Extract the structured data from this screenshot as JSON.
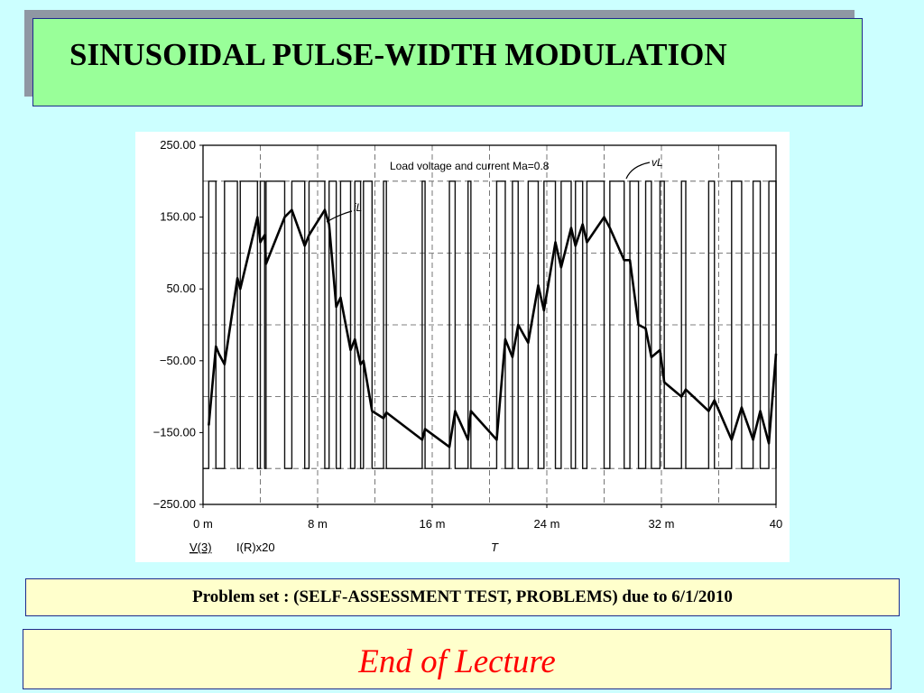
{
  "slide": {
    "title": "SINUSOIDAL PULSE-WIDTH MODULATION",
    "problem_set": "Problem set : (SELF-ASSESSMENT TEST, PROBLEMS) due to 6/1/2010",
    "end_text": "End of Lecture"
  },
  "colors": {
    "background": "#ccffff",
    "title_box": "#99ff99",
    "note_box": "#ffffcc",
    "end_text": "#ff0000",
    "border": "#1d2b8c"
  },
  "chart_data": {
    "type": "line",
    "title": "Load voltage and current Ma=0.8",
    "xlabel": "T",
    "x_ticks": [
      0,
      8,
      16,
      24,
      32,
      40
    ],
    "x_tick_labels": [
      "0 m",
      "8 m",
      "16 m",
      "24 m",
      "32 m",
      "40"
    ],
    "xlim": [
      0,
      40
    ],
    "y_ticks": [
      250,
      150,
      50,
      -50,
      -150,
      -250
    ],
    "y_tick_labels": [
      "250.00",
      "150.00",
      "50.00",
      "−50.00",
      "−150.00",
      "−250.00"
    ],
    "ylim": [
      -250,
      250
    ],
    "grid": true,
    "legend": [
      "V(3)",
      "I(R)x20"
    ],
    "annotations": {
      "voltage": "vL",
      "current": "iL"
    },
    "series": [
      {
        "name": "vL",
        "kind": "pwm",
        "levels": [
          -200,
          200
        ],
        "pulses_ms": [
          [
            0.4,
            0.9
          ],
          [
            1.5,
            2.4
          ],
          [
            2.6,
            3.8
          ],
          [
            4.0,
            4.3
          ],
          [
            4.4,
            5.7
          ],
          [
            6.2,
            7.1
          ],
          [
            7.4,
            8.5
          ],
          [
            8.8,
            9.3
          ],
          [
            9.6,
            10.3
          ],
          [
            10.6,
            11.0
          ],
          [
            11.2,
            11.8
          ],
          [
            12.6,
            12.8
          ],
          [
            15.3,
            15.5
          ],
          [
            17.2,
            17.6
          ],
          [
            18.5,
            18.7
          ],
          [
            20.5,
            21.1
          ],
          [
            21.6,
            22.0
          ],
          [
            22.7,
            23.4
          ],
          [
            23.8,
            24.6
          ],
          [
            25.0,
            25.7
          ],
          [
            26.0,
            26.5
          ],
          [
            26.8,
            28.0
          ],
          [
            28.4,
            29.4
          ],
          [
            29.8,
            30.4
          ],
          [
            30.9,
            31.3
          ],
          [
            31.9,
            32.2
          ],
          [
            33.4,
            33.7
          ],
          [
            35.3,
            35.7
          ],
          [
            36.9,
            37.6
          ],
          [
            38.4,
            38.9
          ],
          [
            39.5,
            40.0
          ]
        ]
      },
      {
        "name": "iL",
        "x": [
          0.4,
          0.9,
          1.1,
          1.5,
          2.4,
          2.6,
          3.8,
          4.0,
          4.3,
          4.4,
          5.7,
          6.2,
          7.1,
          7.4,
          8.5,
          8.8,
          9.3,
          9.6,
          10.3,
          10.6,
          11.0,
          11.2,
          11.8,
          12.6,
          12.8,
          15.3,
          15.5,
          17.2,
          17.6,
          18.5,
          18.7,
          20.5,
          21.1,
          21.6,
          22.0,
          22.7,
          23.4,
          23.8,
          24.6,
          25.0,
          25.7,
          26.0,
          26.5,
          26.8,
          28.0,
          28.4,
          29.4,
          29.8,
          30.4,
          30.9,
          31.3,
          31.9,
          32.2,
          33.4,
          33.7,
          35.3,
          35.7,
          36.9,
          37.6,
          38.4,
          38.9,
          39.5,
          40.0
        ],
        "values": [
          -140,
          -30,
          -40,
          -55,
          65,
          50,
          150,
          115,
          125,
          85,
          150,
          160,
          110,
          125,
          160,
          140,
          25,
          38,
          -35,
          -20,
          -55,
          -50,
          -120,
          -130,
          -122,
          -160,
          -145,
          -170,
          -120,
          -160,
          -120,
          -160,
          -20,
          -45,
          0,
          -25,
          55,
          20,
          115,
          80,
          135,
          110,
          140,
          115,
          150,
          135,
          90,
          90,
          0,
          -5,
          -45,
          -35,
          -80,
          -100,
          -90,
          -120,
          -105,
          -160,
          -115,
          -160,
          -120,
          -165,
          -40
        ]
      }
    ]
  }
}
